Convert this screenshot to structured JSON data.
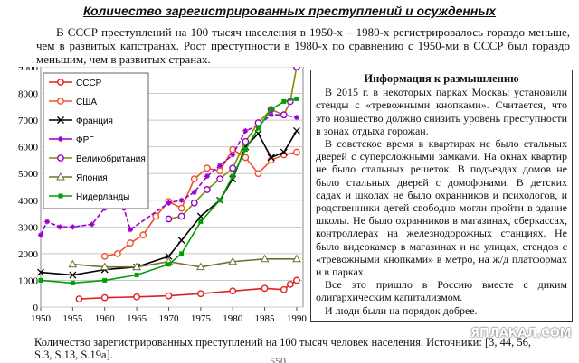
{
  "header": {
    "title": "Количество зарегистрированных преступлений и осужденных",
    "paragraph": "В СССР преступлений на 100 тысяч населения в 1950-х – 1980-х регистрировалось гораздо меньше, чем в развитых капстранах. Рост преступности в 1980-х по сравнению с 1950-ми в СССР был гораздо меньшим, чем в развитых странах."
  },
  "chart_data": {
    "type": "line",
    "grid": true,
    "xlim": [
      1950,
      1991
    ],
    "xticks": [
      1950,
      1955,
      1960,
      1965,
      1970,
      1975,
      1980,
      1985,
      1990
    ],
    "ylim": [
      0,
      9000
    ],
    "yticks": [
      0,
      1000,
      2000,
      3000,
      4000,
      5000,
      6000,
      7000,
      8000,
      9000
    ],
    "series": [
      {
        "name": "СССР",
        "color": "#e02020",
        "marker": "circle",
        "x": [
          1956,
          1960,
          1965,
          1970,
          1975,
          1980,
          1985,
          1988,
          1989,
          1990
        ],
        "values": [
          300,
          350,
          380,
          420,
          500,
          600,
          700,
          650,
          850,
          1000
        ]
      },
      {
        "name": "США",
        "color": "#f05030",
        "marker": "circle",
        "x": [
          1960,
          1962,
          1964,
          1966,
          1968,
          1970,
          1972,
          1974,
          1976,
          1978,
          1980,
          1982,
          1984,
          1986,
          1988,
          1990
        ],
        "values": [
          1900,
          2000,
          2400,
          2700,
          3400,
          3950,
          3700,
          4800,
          5200,
          5100,
          5900,
          5600,
          5000,
          5500,
          5700,
          5800
        ]
      },
      {
        "name": "Франция",
        "color": "#000000",
        "marker": "x",
        "x": [
          1950,
          1955,
          1960,
          1965,
          1970,
          1972,
          1975,
          1978,
          1980,
          1982,
          1984,
          1986,
          1988,
          1990
        ],
        "values": [
          1300,
          1200,
          1400,
          1500,
          1900,
          2500,
          3400,
          4000,
          4800,
          6000,
          6500,
          5600,
          5800,
          6600
        ]
      },
      {
        "name": "ФРГ",
        "color": "#9900cc",
        "marker": "star",
        "x": [
          1950,
          1951,
          1953,
          1955,
          1958,
          1960,
          1962,
          1963,
          1964,
          1970,
          1972,
          1974,
          1976,
          1978,
          1980,
          1982,
          1984,
          1986,
          1988,
          1990
        ],
        "values": [
          2700,
          3200,
          3000,
          3000,
          3100,
          3700,
          3900,
          3700,
          2900,
          3900,
          4000,
          4300,
          4900,
          5300,
          5700,
          6600,
          6800,
          7200,
          7200,
          7100
        ]
      },
      {
        "name": "Великобритания",
        "color": "#8a8a00",
        "marker": "circle",
        "x": [
          1970,
          1972,
          1974,
          1976,
          1978,
          1980,
          1982,
          1984,
          1986,
          1988,
          1989,
          1990
        ],
        "values": [
          3300,
          3400,
          3900,
          4400,
          4800,
          5200,
          6200,
          6900,
          7400,
          7200,
          7700,
          9000
        ]
      },
      {
        "name": "Япония",
        "color": "#707030",
        "marker": "triangle",
        "x": [
          1955,
          1960,
          1965,
          1970,
          1975,
          1980,
          1985,
          1990
        ],
        "values": [
          1600,
          1500,
          1500,
          1700,
          1500,
          1700,
          1800,
          1800
        ]
      },
      {
        "name": "Нидерланды",
        "color": "#00a000",
        "marker": "square",
        "x": [
          1950,
          1955,
          1960,
          1965,
          1970,
          1972,
          1975,
          1978,
          1980,
          1982,
          1984,
          1986,
          1988,
          1990
        ],
        "values": [
          1000,
          900,
          1000,
          1200,
          1600,
          2000,
          3200,
          4000,
          4900,
          5900,
          6700,
          7400,
          7700,
          7800
        ]
      }
    ]
  },
  "info": {
    "title": "Информация к размышлению",
    "paragraphs": [
      "В 2015 г. в некоторых парках Москвы установили стенды с «тревожными кнопками». Считается, что это новшество должно снизить уровень преступности в зонах отдыха горожан.",
      "В советское время в квартирах не было стальных дверей с суперсложными замками. На окнах квартир не было стальных решеток. В подъездах домов не было стальных дверей с домофонами. В детских садах и школах не было охранников и психологов, и родственники детей свободно могли пройти в здание школы. Не было охранников в магазинах, сберкассах, контроллерах на железнодорожных станциях. Не было видеокамер в магазинах и на улицах, стендов с «тревожными кнопками» в метро, на ж/д платформах и в парках.",
      "Все это пришло в Россию вместе с диким олигархическим капитализмом.",
      "И люди были на порядок добрее."
    ]
  },
  "caption": "Количество зарегистрированных преступлений на 100 тысяч человек населения. Источники: [3, 44, 56, S.3, S.13, S.19a].",
  "watermark": "ЯПЛАКАЛ.COM",
  "page_number": "550"
}
